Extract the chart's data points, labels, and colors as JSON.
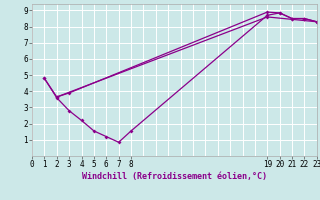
{
  "xlabel": "Windchill (Refroidissement éolien,°C)",
  "background_color": "#cce8e8",
  "grid_color": "#ffffff",
  "line_color": "#8b008b",
  "xlim": [
    0,
    23
  ],
  "ylim": [
    0,
    9.4
  ],
  "xticks": [
    0,
    1,
    2,
    3,
    4,
    5,
    6,
    7,
    8,
    19,
    20,
    21,
    22,
    23
  ],
  "yticks": [
    1,
    2,
    3,
    4,
    5,
    6,
    7,
    8,
    9
  ],
  "line1": [
    [
      1,
      4.8
    ],
    [
      2,
      3.6
    ],
    [
      3,
      2.8
    ],
    [
      4,
      2.2
    ],
    [
      5,
      1.55
    ],
    [
      6,
      1.2
    ],
    [
      7,
      0.85
    ],
    [
      8,
      1.55
    ],
    [
      19,
      8.7
    ],
    [
      20,
      8.85
    ],
    [
      21,
      8.5
    ],
    [
      22,
      8.5
    ],
    [
      23,
      8.3
    ]
  ],
  "line2": [
    [
      1,
      4.8
    ],
    [
      2,
      3.65
    ],
    [
      3,
      3.9
    ],
    [
      19,
      8.9
    ],
    [
      20,
      8.85
    ],
    [
      21,
      8.5
    ],
    [
      22,
      8.5
    ],
    [
      23,
      8.3
    ]
  ],
  "line3": [
    [
      2,
      3.65
    ],
    [
      19,
      8.6
    ],
    [
      23,
      8.3
    ]
  ]
}
